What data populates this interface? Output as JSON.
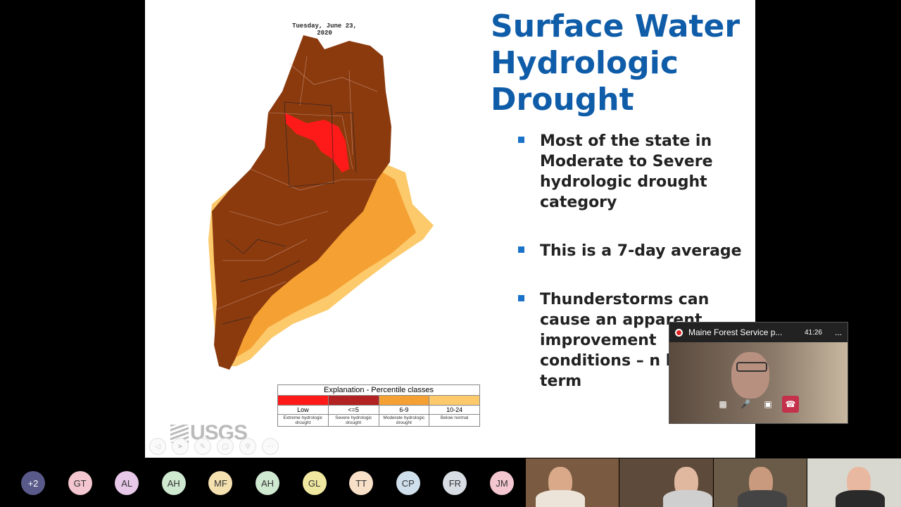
{
  "slide": {
    "title_lines": [
      "Surface Water",
      "Hydrologic",
      "Drought"
    ],
    "bullets": [
      "Most of the state in Moderate to Severe hydrologic drought category",
      "This is a 7-day average",
      "Thunderstorms can cause an apparent improvement conditions – n long term"
    ]
  },
  "map": {
    "date": "Tuesday, June 23, 2020",
    "logo_text": "USGS",
    "legend": {
      "title": "Explanation - Percentile classes",
      "classes": [
        {
          "label": "Low",
          "desc": "Extreme hydrologic drought",
          "color": "#ff1a1a"
        },
        {
          "label": "<=5",
          "desc": "Severe hydrologic drought",
          "color": "#b22222"
        },
        {
          "label": "6-9",
          "desc": "Moderate hydrologic drought",
          "color": "#f5a033"
        },
        {
          "label": "10-24",
          "desc": "Below normal",
          "color": "#fcc96b"
        }
      ]
    }
  },
  "colors": {
    "map_dark": "#8b3a0e",
    "title_blue": "#0f5ca8",
    "end_call": "#c4314b"
  },
  "toolbar_icons": [
    "prev-icon",
    "pointer-icon",
    "pen-icon",
    "slides-icon",
    "zoom-icon",
    "more-icon"
  ],
  "call_popup": {
    "title": "Maine Forest Service p...",
    "time": "41:26",
    "more": "..."
  },
  "participants": [
    {
      "initials": "+2",
      "color": "#5a5a8a",
      "text_color": "#ffffff"
    },
    {
      "initials": "GT",
      "color": "#f4c6d0",
      "text_color": "#333333"
    },
    {
      "initials": "AL",
      "color": "#e8c8e8",
      "text_color": "#333333"
    },
    {
      "initials": "AH",
      "color": "#cfe8d0",
      "text_color": "#333333"
    },
    {
      "initials": "MF",
      "color": "#f5e0b0",
      "text_color": "#333333"
    },
    {
      "initials": "AH",
      "color": "#cfe8d0",
      "text_color": "#333333"
    },
    {
      "initials": "GL",
      "color": "#f0e8a0",
      "text_color": "#333333"
    },
    {
      "initials": "TT",
      "color": "#f8e0c8",
      "text_color": "#333333"
    },
    {
      "initials": "CP",
      "color": "#cfe0ec",
      "text_color": "#333333"
    },
    {
      "initials": "FR",
      "color": "#d8dde4",
      "text_color": "#333333"
    },
    {
      "initials": "JM",
      "color": "#f4c6d0",
      "text_color": "#333333"
    }
  ]
}
